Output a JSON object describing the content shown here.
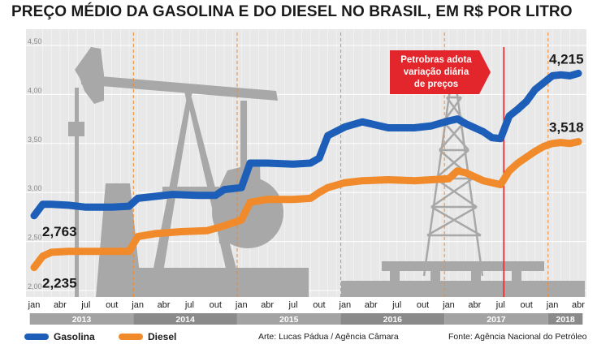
{
  "title": "PREÇO MÉDIO DA GASOLINA E DO DIESEL NO BRASIL, EM R$ POR LITRO",
  "colors": {
    "gasolina": "#1d5fb8",
    "diesel": "#f08a2b",
    "annotation": "#e2262c",
    "plot_bg": "#e8e8e8",
    "grid": "#ffffff",
    "year_band_dark": "#8a8a8a",
    "year_band_light": "#a3a3a3"
  },
  "annotation": {
    "lines": [
      "Petrobras adota",
      "variação diária",
      "de preços"
    ],
    "at": "2017-07"
  },
  "legend": {
    "gasolina": "Gasolina",
    "diesel": "Diesel"
  },
  "credits": {
    "arte": "Arte: Lucas Pádua / Agência Câmara",
    "fonte": "Fonte: Agência Nacional do Petróleo"
  },
  "chart_data": {
    "type": "line",
    "ylim": [
      2.0,
      4.5
    ],
    "yticks": [
      "2,00",
      "2,50",
      "3,00",
      "3,50",
      "4,00",
      "4,50"
    ],
    "ytick_values": [
      2.0,
      2.5,
      3.0,
      3.5,
      4.0,
      4.5
    ],
    "grid": true,
    "x_start": "2013-01",
    "x_end": "2018-04",
    "month_labels": [
      {
        "label": "jan",
        "x": "2013-01"
      },
      {
        "label": "abr",
        "x": "2013-04"
      },
      {
        "label": "jul",
        "x": "2013-07"
      },
      {
        "label": "out",
        "x": "2013-10"
      },
      {
        "label": "jan",
        "x": "2014-01"
      },
      {
        "label": "abr",
        "x": "2014-04"
      },
      {
        "label": "jul",
        "x": "2014-07"
      },
      {
        "label": "out",
        "x": "2014-10"
      },
      {
        "label": "jan",
        "x": "2015-01"
      },
      {
        "label": "abr",
        "x": "2015-04"
      },
      {
        "label": "jul",
        "x": "2015-07"
      },
      {
        "label": "out",
        "x": "2015-10"
      },
      {
        "label": "jan",
        "x": "2016-01"
      },
      {
        "label": "abr",
        "x": "2016-04"
      },
      {
        "label": "jul",
        "x": "2016-07"
      },
      {
        "label": "out",
        "x": "2016-10"
      },
      {
        "label": "jan",
        "x": "2017-01"
      },
      {
        "label": "abr",
        "x": "2017-04"
      },
      {
        "label": "jul",
        "x": "2017-07"
      },
      {
        "label": "out",
        "x": "2017-10"
      },
      {
        "label": "jan",
        "x": "2018-01"
      },
      {
        "label": "abr",
        "x": "2018-04"
      }
    ],
    "years": [
      {
        "label": "2013",
        "start": "2013-01",
        "end": "2013-12"
      },
      {
        "label": "2014",
        "start": "2014-01",
        "end": "2014-12"
      },
      {
        "label": "2015",
        "start": "2015-01",
        "end": "2015-12"
      },
      {
        "label": "2016",
        "start": "2016-01",
        "end": "2016-12"
      },
      {
        "label": "2017",
        "start": "2017-01",
        "end": "2017-12"
      },
      {
        "label": "2018",
        "start": "2018-01",
        "end": "2018-04"
      }
    ],
    "series": [
      {
        "name": "Gasolina",
        "start_label": "2,763",
        "end_label": "4,215",
        "points": [
          [
            "2013-01",
            2.763
          ],
          [
            "2013-02",
            2.88
          ],
          [
            "2013-03",
            2.88
          ],
          [
            "2013-05",
            2.87
          ],
          [
            "2013-07",
            2.85
          ],
          [
            "2013-10",
            2.85
          ],
          [
            "2013-12",
            2.86
          ],
          [
            "2014-01",
            2.94
          ],
          [
            "2014-03",
            2.96
          ],
          [
            "2014-05",
            2.98
          ],
          [
            "2014-08",
            2.97
          ],
          [
            "2014-10",
            2.97
          ],
          [
            "2014-11",
            3.03
          ],
          [
            "2015-01",
            3.05
          ],
          [
            "2015-02",
            3.3
          ],
          [
            "2015-04",
            3.3
          ],
          [
            "2015-07",
            3.29
          ],
          [
            "2015-09",
            3.3
          ],
          [
            "2015-10",
            3.35
          ],
          [
            "2015-11",
            3.58
          ],
          [
            "2016-01",
            3.67
          ],
          [
            "2016-03",
            3.72
          ],
          [
            "2016-04",
            3.7
          ],
          [
            "2016-06",
            3.66
          ],
          [
            "2016-09",
            3.66
          ],
          [
            "2016-11",
            3.68
          ],
          [
            "2017-01",
            3.73
          ],
          [
            "2017-02",
            3.75
          ],
          [
            "2017-03",
            3.7
          ],
          [
            "2017-05",
            3.62
          ],
          [
            "2017-06",
            3.56
          ],
          [
            "2017-07",
            3.55
          ],
          [
            "2017-08",
            3.78
          ],
          [
            "2017-09",
            3.85
          ],
          [
            "2017-10",
            3.93
          ],
          [
            "2017-11",
            4.05
          ],
          [
            "2017-12",
            4.12
          ],
          [
            "2018-01",
            4.19
          ],
          [
            "2018-02",
            4.2
          ],
          [
            "2018-03",
            4.19
          ],
          [
            "2018-04",
            4.215
          ]
        ]
      },
      {
        "name": "Diesel",
        "start_label": "2,235",
        "end_label": "3,518",
        "points": [
          [
            "2013-01",
            2.235
          ],
          [
            "2013-02",
            2.35
          ],
          [
            "2013-03",
            2.39
          ],
          [
            "2013-05",
            2.4
          ],
          [
            "2013-08",
            2.4
          ],
          [
            "2013-12",
            2.4
          ],
          [
            "2014-01",
            2.55
          ],
          [
            "2014-03",
            2.58
          ],
          [
            "2014-06",
            2.6
          ],
          [
            "2014-09",
            2.61
          ],
          [
            "2014-11",
            2.66
          ],
          [
            "2015-01",
            2.72
          ],
          [
            "2015-02",
            2.9
          ],
          [
            "2015-04",
            2.93
          ],
          [
            "2015-07",
            2.93
          ],
          [
            "2015-09",
            2.94
          ],
          [
            "2015-10",
            3.0
          ],
          [
            "2015-11",
            3.05
          ],
          [
            "2016-01",
            3.1
          ],
          [
            "2016-03",
            3.12
          ],
          [
            "2016-06",
            3.13
          ],
          [
            "2016-09",
            3.12
          ],
          [
            "2016-11",
            3.13
          ],
          [
            "2017-01",
            3.14
          ],
          [
            "2017-02",
            3.22
          ],
          [
            "2017-03",
            3.2
          ],
          [
            "2017-05",
            3.12
          ],
          [
            "2017-06",
            3.1
          ],
          [
            "2017-07",
            3.08
          ],
          [
            "2017-08",
            3.22
          ],
          [
            "2017-09",
            3.3
          ],
          [
            "2017-10",
            3.36
          ],
          [
            "2017-11",
            3.42
          ],
          [
            "2017-12",
            3.47
          ],
          [
            "2018-01",
            3.5
          ],
          [
            "2018-02",
            3.51
          ],
          [
            "2018-03",
            3.5
          ],
          [
            "2018-04",
            3.518
          ]
        ]
      }
    ]
  }
}
